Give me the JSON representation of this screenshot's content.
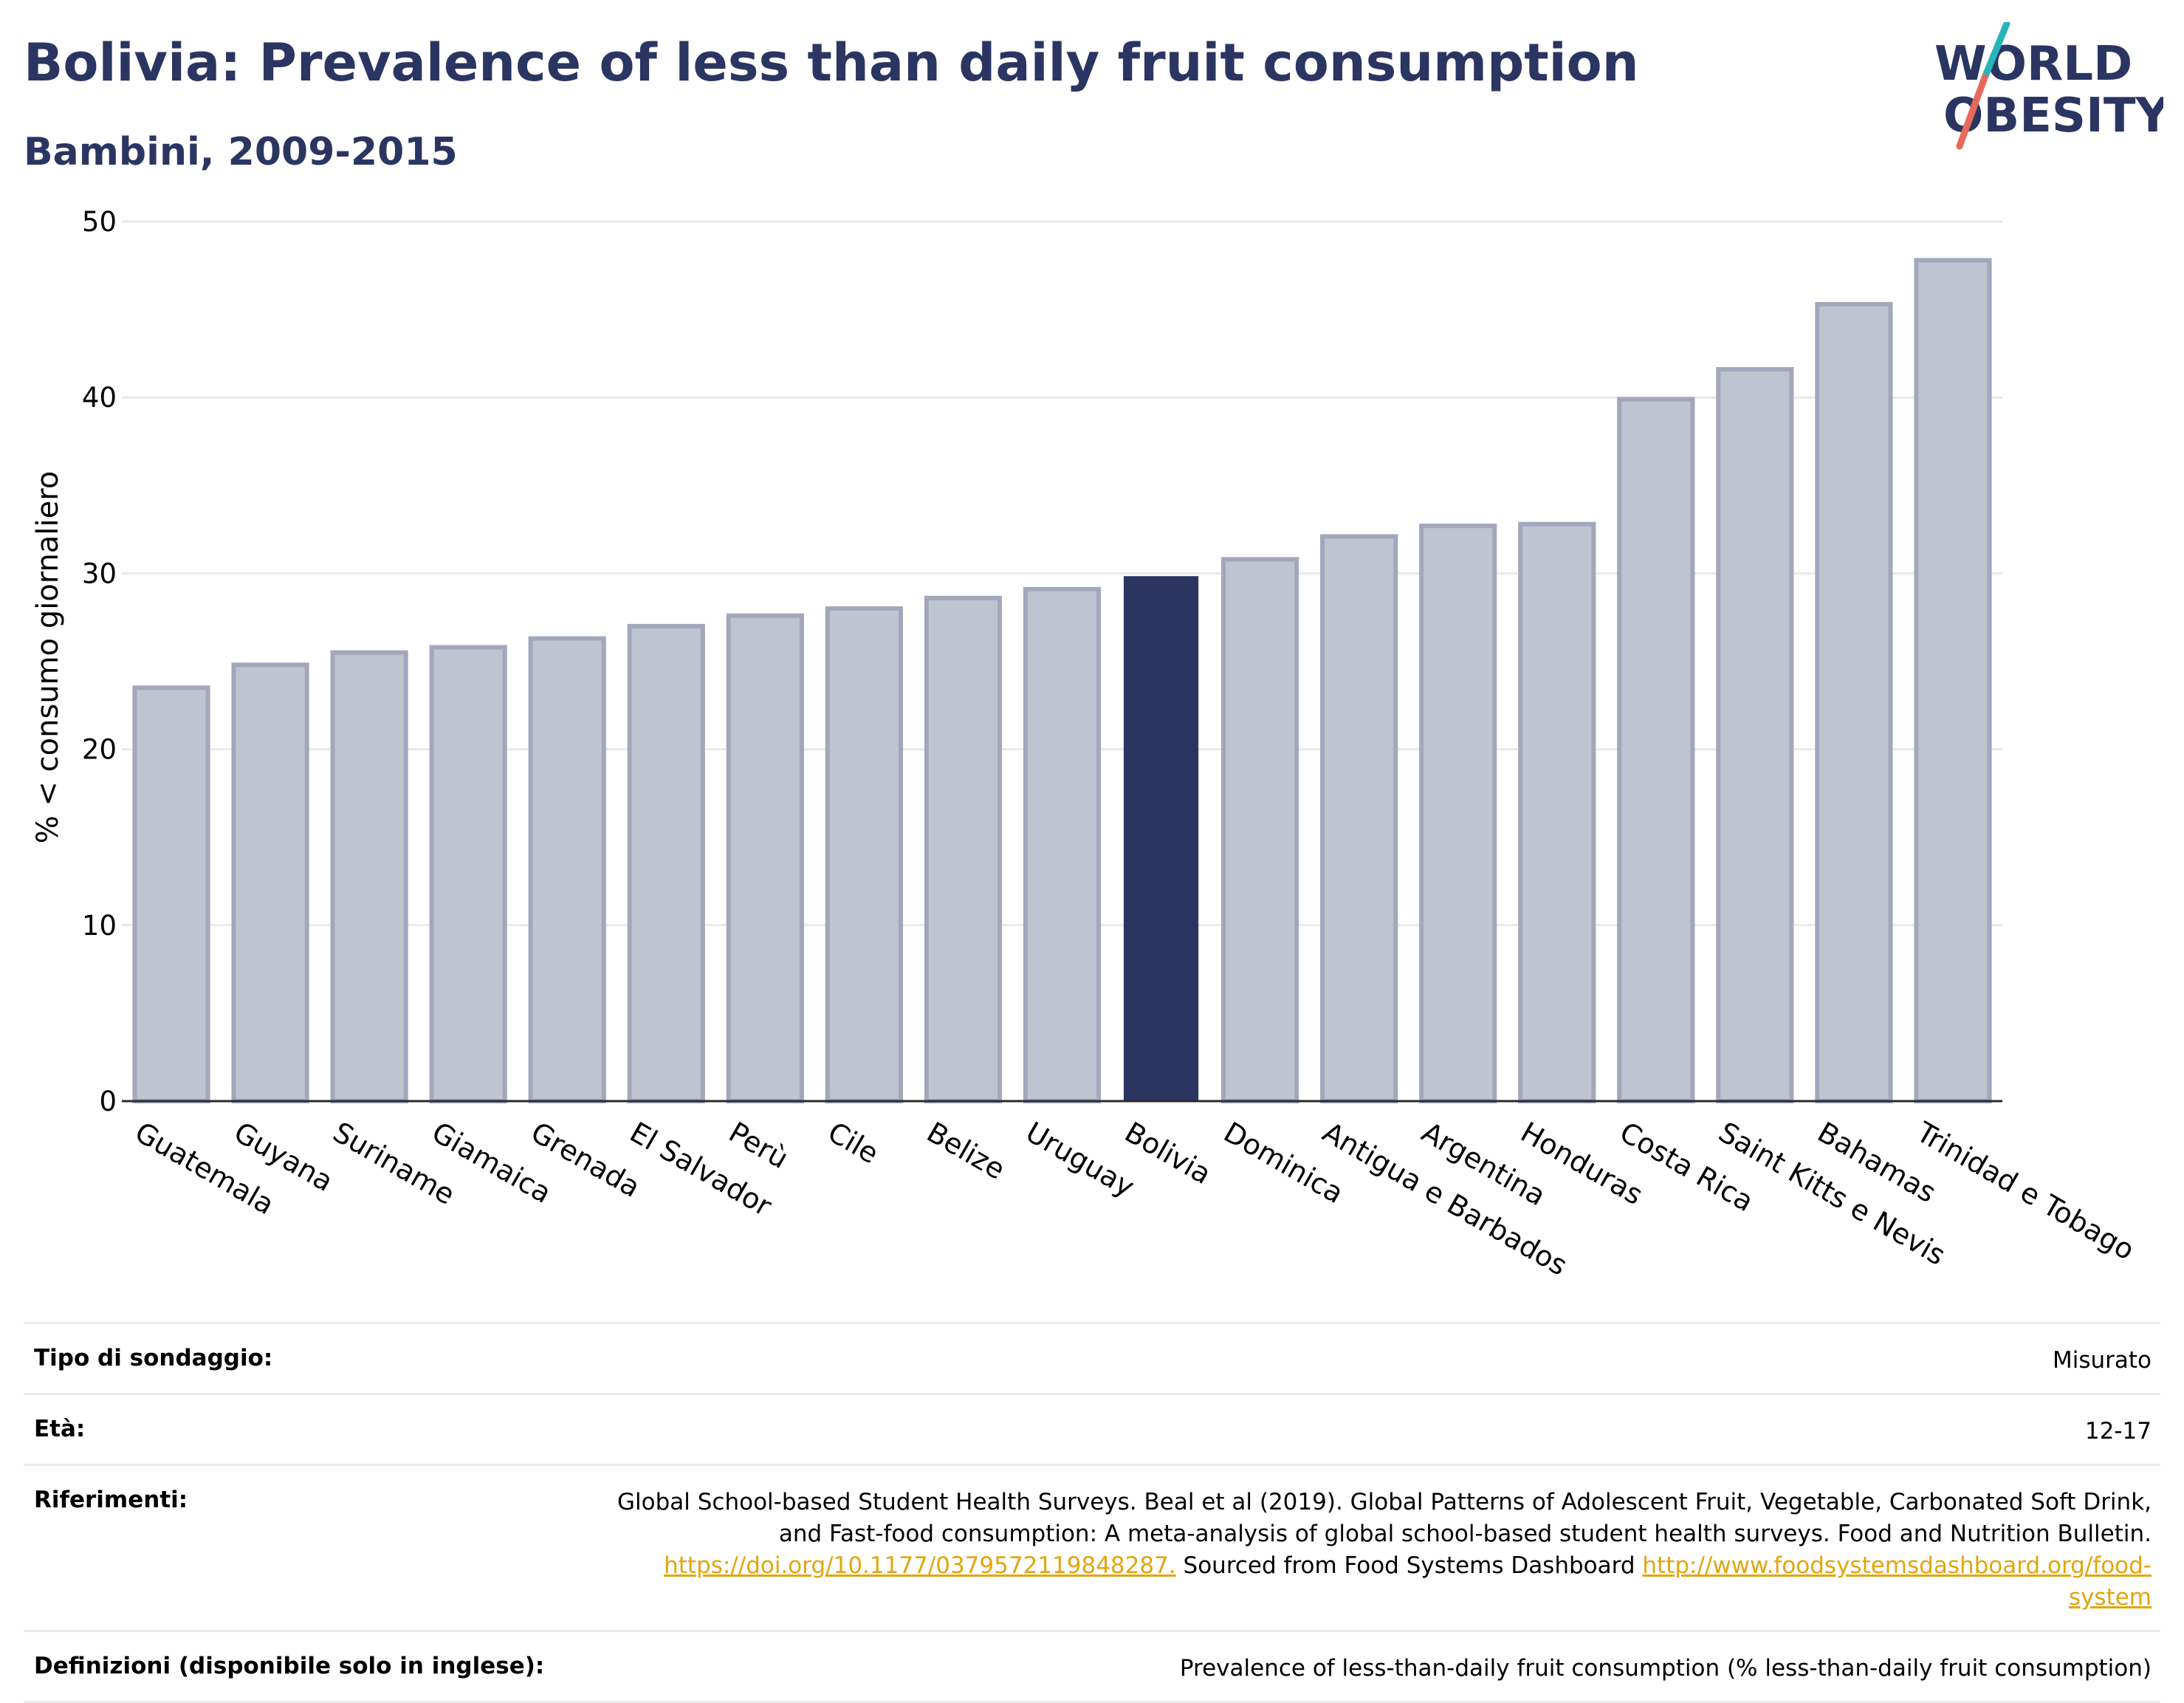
{
  "header": {
    "title": "Bolivia: Prevalence of less than daily fruit consumption",
    "subtitle": "Bambini, 2009-2015"
  },
  "logo": {
    "line1": "WORLD",
    "line2": "OBESITY",
    "colors": {
      "text": "#2b3562",
      "slash_top": "#2ab3b8",
      "slash_bottom": "#e8695a"
    }
  },
  "chart_data": {
    "type": "bar",
    "title": "",
    "ylabel": "% < consumo giornaliero",
    "xlabel": "",
    "ylim": [
      0,
      50
    ],
    "yticks": [
      0,
      10,
      20,
      30,
      40,
      50
    ],
    "grid": true,
    "highlight": "Bolivia",
    "colors": {
      "bar": "#c0c3d0",
      "bar_edge": "#a3a7bd",
      "highlight": "#2b3562",
      "grid": "#e9e9e9"
    },
    "categories": [
      "Guatemala",
      "Guyana",
      "Suriname",
      "Giamaica",
      "Grenada",
      "El Salvador",
      "Perù",
      "Cile",
      "Belize",
      "Uruguay",
      "Bolivia",
      "Dominica",
      "Antigua e Barbados",
      "Argentina",
      "Honduras",
      "Costa Rica",
      "Saint Kitts e Nevis",
      "Bahamas",
      "Trinidad e Tobago"
    ],
    "values": [
      23.5,
      24.8,
      25.5,
      25.8,
      26.3,
      27.0,
      27.6,
      28.0,
      28.6,
      29.1,
      29.8,
      30.8,
      32.1,
      32.7,
      32.8,
      39.9,
      41.6,
      45.3,
      47.8
    ]
  },
  "meta": {
    "survey_type": {
      "label": "Tipo di sondaggio:",
      "value": "Misurato"
    },
    "age": {
      "label": "Età:",
      "value": "12-17"
    },
    "references": {
      "label": "Riferimenti:",
      "line1": "Global School-based Student Health Surveys. Beal et al (2019). Global Patterns of Adolescent Fruit, Vegetable, Carbonated Soft Drink,",
      "line2": "and Fast-food consumption: A meta-analysis of global school-based student health surveys. Food and Nutrition Bulletin.",
      "doi_link": "https://doi.org/10.1177/0379572119848287.",
      "mid_text": " Sourced from Food Systems Dashboard ",
      "dashboard_link_a": "http://www.foodsystemsdashboard.org/food-",
      "dashboard_link_b": "system"
    },
    "definitions": {
      "label": "Definizioni (disponibile solo in inglese):",
      "value": "Prevalence of less-than-daily fruit consumption (% less-than-daily fruit consumption)"
    }
  }
}
